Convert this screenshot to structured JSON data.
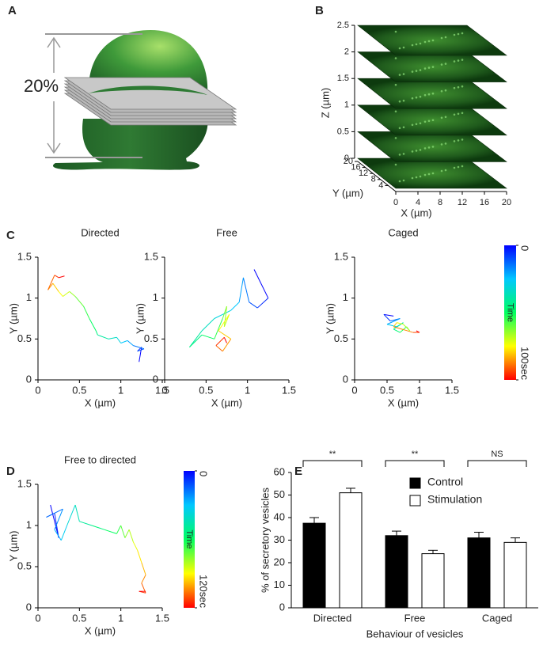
{
  "panels": [
    "A",
    "B",
    "C",
    "D",
    "E"
  ],
  "illustration_label": "20%",
  "chart_data": [
    {
      "type": "stack",
      "zlabel": "Z (µm)",
      "zlim": [
        0,
        2.5
      ],
      "zticks": [
        0,
        0.5,
        1,
        1.5,
        2,
        2.5
      ],
      "xlabel": "X (µm)",
      "xlim": [
        0,
        20
      ],
      "xticks": [
        0,
        4,
        8,
        12,
        16,
        20
      ],
      "ylabel": "Y (µm)",
      "ylim": [
        0,
        20
      ],
      "yticks": [
        4,
        8,
        12,
        16,
        20
      ]
    },
    {
      "type": "trajectory",
      "title": "Directed",
      "xlabel": "X (µm)",
      "ylabel": "Y (µm)",
      "xlim": [
        0,
        1.5
      ],
      "ylim": [
        0,
        1.5
      ],
      "xticks": [
        0,
        0.5,
        1,
        1.5
      ],
      "yticks": [
        0,
        0.5,
        1,
        1.5
      ],
      "colormap": [
        "#0000ff",
        "#00c8ff",
        "#00ff60",
        "#ffff00",
        "#ff0000"
      ],
      "x": [
        1.22,
        1.25,
        1.2,
        1.28,
        1.15,
        1.08,
        1.0,
        0.95,
        0.85,
        0.72,
        0.7,
        0.62,
        0.55,
        0.45,
        0.38,
        0.3,
        0.25,
        0.18,
        0.12,
        0.2,
        0.25,
        0.32
      ],
      "y": [
        0.22,
        0.4,
        0.35,
        0.38,
        0.42,
        0.48,
        0.45,
        0.52,
        0.5,
        0.55,
        0.6,
        0.75,
        0.9,
        1.02,
        1.08,
        1.02,
        1.08,
        1.18,
        1.1,
        1.28,
        1.25,
        1.27
      ]
    },
    {
      "type": "trajectory",
      "title": "Free",
      "xlabel": "X (µm)",
      "ylabel": "Y (µm)",
      "xlim": [
        0,
        1.5
      ],
      "ylim": [
        0,
        1.5
      ],
      "xticks": [
        0,
        0.5,
        1,
        1.5
      ],
      "yticks": [
        0,
        0.5,
        1,
        1.5
      ],
      "colormap": [
        "#0000ff",
        "#00c8ff",
        "#00ff60",
        "#ffff00",
        "#ff0000"
      ],
      "x": [
        1.08,
        1.25,
        1.12,
        1.02,
        0.95,
        0.9,
        0.8,
        0.6,
        0.45,
        0.3,
        0.45,
        0.6,
        0.7,
        0.75,
        0.72,
        0.78,
        0.65,
        0.8,
        0.7,
        0.62,
        0.72,
        0.75
      ],
      "y": [
        1.35,
        1.0,
        0.88,
        0.95,
        1.25,
        0.95,
        0.85,
        0.75,
        0.6,
        0.4,
        0.55,
        0.5,
        0.75,
        0.9,
        0.65,
        0.8,
        0.6,
        0.5,
        0.35,
        0.42,
        0.52,
        0.45
      ]
    },
    {
      "type": "trajectory",
      "title": "Caged",
      "xlabel": "X (µm)",
      "ylabel": "Y (µm)",
      "xlim": [
        0,
        1.5
      ],
      "ylim": [
        0,
        1.5
      ],
      "xticks": [
        0,
        0.5,
        1,
        1.5
      ],
      "yticks": [
        0,
        0.5,
        1,
        1.5
      ],
      "colormap": [
        "#0000ff",
        "#00c8ff",
        "#00ff60",
        "#ffff00",
        "#ff0000"
      ],
      "x": [
        0.6,
        0.45,
        0.55,
        0.7,
        0.5,
        0.65,
        0.75,
        0.6,
        0.7,
        0.8,
        0.85,
        0.75,
        0.65,
        0.6,
        0.9,
        1.0,
        0.95
      ],
      "y": [
        0.78,
        0.8,
        0.72,
        0.75,
        0.68,
        0.65,
        0.7,
        0.62,
        0.58,
        0.65,
        0.6,
        0.68,
        0.7,
        0.65,
        0.58,
        0.58,
        0.6
      ]
    },
    {
      "type": "colorbar",
      "label": "Time",
      "ticks": [
        0,
        {
          "value": 100,
          "label": "100sec"
        }
      ],
      "colormap": [
        "#0000ff",
        "#00c8ff",
        "#00ff60",
        "#ffff00",
        "#ff0000"
      ]
    },
    {
      "type": "trajectory",
      "title": "Free to directed",
      "xlabel": "X (µm)",
      "ylabel": "Y (µm)",
      "xlim": [
        0,
        1.5
      ],
      "ylim": [
        0,
        1.5
      ],
      "xticks": [
        0,
        0.5,
        1,
        1.5
      ],
      "yticks": [
        0,
        0.5,
        1,
        1.5
      ],
      "colormap": [
        "#0000ff",
        "#00c8ff",
        "#00ff60",
        "#ffff00",
        "#ff0000"
      ],
      "x": [
        0.15,
        0.25,
        0.2,
        0.1,
        0.3,
        0.2,
        0.28,
        0.35,
        0.45,
        0.5,
        0.65,
        0.8,
        0.95,
        1.0,
        1.05,
        1.1,
        1.15,
        1.2,
        1.25,
        1.3,
        1.25,
        1.3,
        1.22,
        1.3
      ],
      "y": [
        1.25,
        0.85,
        1.15,
        1.1,
        1.2,
        0.95,
        0.82,
        1.0,
        1.25,
        1.05,
        1.0,
        0.95,
        0.9,
        1.0,
        0.85,
        0.95,
        0.8,
        0.7,
        0.55,
        0.4,
        0.3,
        0.18,
        0.2,
        0.2
      ]
    },
    {
      "type": "colorbar",
      "label": "Time",
      "ticks": [
        0,
        {
          "value": 120,
          "label": "120sec"
        }
      ],
      "colormap": [
        "#0000ff",
        "#00c8ff",
        "#00ff60",
        "#ffff00",
        "#ff0000"
      ]
    },
    {
      "type": "bar",
      "ylabel": "% of secretory vesicles",
      "xlabel": "Behaviour of vesicles",
      "categories": [
        "Directed",
        "Free",
        "Caged"
      ],
      "ylim": [
        0,
        60
      ],
      "yticks": [
        0,
        10,
        20,
        30,
        40,
        50,
        60
      ],
      "series": [
        {
          "name": "Control",
          "color": "#000000",
          "values": [
            37.5,
            32,
            31
          ],
          "errors": [
            2.5,
            2,
            2.5
          ]
        },
        {
          "name": "Stimulation",
          "color": "#ffffff",
          "values": [
            51,
            24,
            29
          ],
          "errors": [
            2,
            1.5,
            2
          ]
        }
      ],
      "annotations": [
        "**",
        "**",
        "NS"
      ]
    }
  ]
}
